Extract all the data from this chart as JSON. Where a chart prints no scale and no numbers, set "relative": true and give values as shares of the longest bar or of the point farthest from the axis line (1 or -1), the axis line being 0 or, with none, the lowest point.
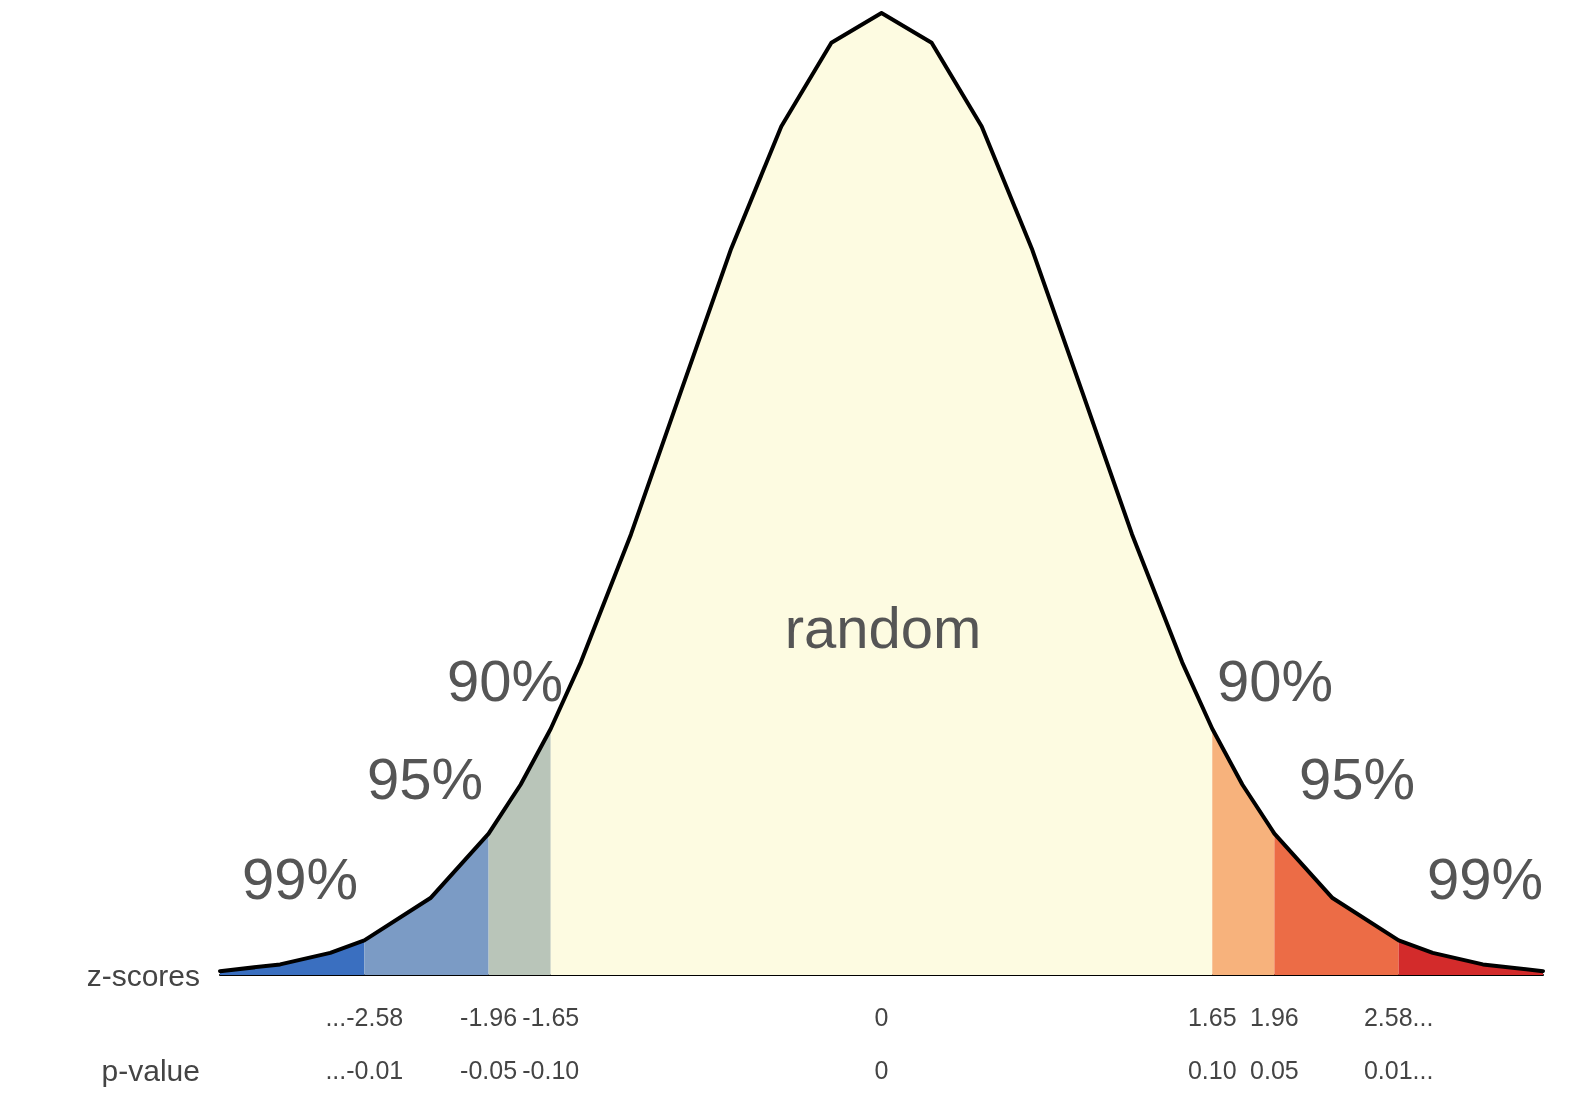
{
  "chart_data": {
    "type": "area",
    "relative": true,
    "marker": "none",
    "xlabel": "z-scores",
    "xlim": [
      -3.3,
      3.3
    ],
    "xticks": [
      {
        "value": -2.58,
        "label": "...-2.58"
      },
      -1.96,
      -1.65,
      0,
      1.65,
      1.96,
      {
        "value": 2.58,
        "label": "2.58..."
      }
    ],
    "series": [
      {
        "color": "#3a6fc0",
        "x": [
          -3.3,
          -3.0,
          -2.75,
          -2.58
        ],
        "values": [
          0.004,
          0.011,
          0.023,
          0.036
        ]
      },
      {
        "color": "#7b9bc5",
        "x": [
          -2.58,
          -2.25,
          -1.96
        ],
        "values": [
          0.036,
          0.08,
          0.147
        ]
      },
      {
        "color": "#b9c5b9",
        "x": [
          -1.96,
          -1.8,
          -1.65
        ],
        "values": [
          0.147,
          0.198,
          0.256
        ]
      },
      {
        "color": "#fdfbe1",
        "x": [
          -1.65,
          -1.5,
          -1.25,
          -1.0,
          -0.75,
          -0.5,
          -0.25,
          0,
          0.25,
          0.5,
          0.75,
          1.0,
          1.25,
          1.5,
          1.65
        ],
        "values": [
          0.256,
          0.325,
          0.458,
          0.607,
          0.755,
          0.882,
          0.969,
          1,
          0.969,
          0.882,
          0.755,
          0.607,
          0.458,
          0.325,
          0.256
        ]
      },
      {
        "color": "#f7b27c",
        "x": [
          1.65,
          1.8,
          1.96
        ],
        "values": [
          0.256,
          0.198,
          0.147
        ]
      },
      {
        "color": "#ec6c46",
        "x": [
          1.96,
          2.25,
          2.58
        ],
        "values": [
          0.147,
          0.08,
          0.036
        ]
      },
      {
        "color": "#d32b2b",
        "x": [
          2.58,
          2.75,
          3.0,
          3.3
        ],
        "values": [
          0.036,
          0.023,
          0.011,
          0.004
        ]
      },
      {
        "type": "line",
        "color": "#000000",
        "line_style": "solid",
        "x": [
          -3.3,
          -3.0,
          -2.75,
          -2.58,
          -2.25,
          -1.96,
          -1.8,
          -1.65,
          -1.5,
          -1.25,
          -1.0,
          -0.75,
          -0.5,
          -0.25,
          0,
          0.25,
          0.5,
          0.75,
          1.0,
          1.25,
          1.5,
          1.65,
          1.8,
          1.96,
          2.25,
          2.58,
          2.75,
          3.0,
          3.3
        ],
        "values": [
          0.004,
          0.011,
          0.023,
          0.036,
          0.08,
          0.147,
          0.198,
          0.256,
          0.325,
          0.458,
          0.607,
          0.755,
          0.882,
          0.969,
          1,
          0.969,
          0.882,
          0.755,
          0.607,
          0.458,
          0.325,
          0.256,
          0.198,
          0.147,
          0.08,
          0.036,
          0.023,
          0.011,
          0.004
        ]
      }
    ],
    "annotations": [
      "random",
      "90%",
      "95%",
      "99%",
      "90%",
      "95%",
      "99%",
      "p-value",
      "...-0.01",
      "-0.05",
      "-0.10",
      "0",
      "0.10",
      "0.05",
      "0.01..."
    ]
  }
}
